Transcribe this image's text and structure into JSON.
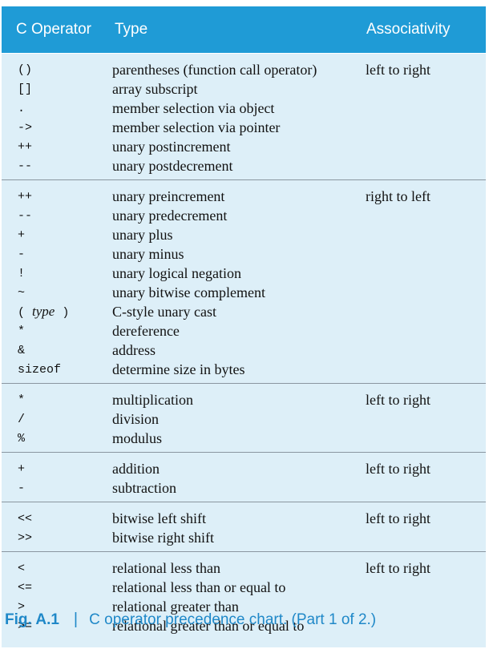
{
  "header": {
    "col_operator": "C Operator",
    "col_type": "Type",
    "col_associativity": "Associativity"
  },
  "groups": [
    {
      "rows": [
        {
          "op": "()",
          "type": "parentheses (function call operator)",
          "assoc": "left to right"
        },
        {
          "op": "[]",
          "type": "array subscript",
          "assoc": ""
        },
        {
          "op": ".",
          "type": "member selection via object",
          "assoc": ""
        },
        {
          "op": "->",
          "type": "member selection via pointer",
          "assoc": ""
        },
        {
          "op": "++",
          "type": "unary postincrement",
          "assoc": ""
        },
        {
          "op": "--",
          "type": "unary postdecrement",
          "assoc": ""
        }
      ]
    },
    {
      "rows": [
        {
          "op": "++",
          "type": "unary preincrement",
          "assoc": "right to left"
        },
        {
          "op": "--",
          "type": "unary predecrement",
          "assoc": ""
        },
        {
          "op": "+",
          "type": "unary plus",
          "assoc": ""
        },
        {
          "op": "-",
          "type": "unary minus",
          "assoc": ""
        },
        {
          "op": "!",
          "type": "unary logical negation",
          "assoc": ""
        },
        {
          "op": "~",
          "type": "unary bitwise complement",
          "assoc": ""
        },
        {
          "op_pre": "( ",
          "op_italic": "type",
          "op_post": " )",
          "type": "C-style unary cast",
          "assoc": ""
        },
        {
          "op": "*",
          "type": "dereference",
          "assoc": ""
        },
        {
          "op": "&",
          "type": "address",
          "assoc": ""
        },
        {
          "op": "sizeof",
          "type": "determine size in bytes",
          "assoc": ""
        }
      ]
    },
    {
      "rows": [
        {
          "op": "*",
          "type": "multiplication",
          "assoc": "left to right"
        },
        {
          "op": "/",
          "type": "division",
          "assoc": ""
        },
        {
          "op": "%",
          "type": "modulus",
          "assoc": ""
        }
      ]
    },
    {
      "rows": [
        {
          "op": "+",
          "type": "addition",
          "assoc": "left to right"
        },
        {
          "op": "-",
          "type": "subtraction",
          "assoc": ""
        }
      ]
    },
    {
      "rows": [
        {
          "op": "<<",
          "type": "bitwise left shift",
          "assoc": "left to right"
        },
        {
          "op": ">>",
          "type": "bitwise right shift",
          "assoc": ""
        }
      ]
    },
    {
      "rows": [
        {
          "op": "<",
          "type": "relational less than",
          "assoc": "left to right"
        },
        {
          "op": "<=",
          "type": "relational less than or equal to",
          "assoc": ""
        },
        {
          "op": ">",
          "type": "relational greater than",
          "assoc": ""
        },
        {
          "op": ">=",
          "type": "relational greater than or equal to",
          "assoc": ""
        }
      ]
    }
  ],
  "caption": {
    "fig_label": "Fig. A.1",
    "separator": "|",
    "text": "C operator precedence chart. (Part 1 of 2.)"
  },
  "colors": {
    "header_bg": "#1f9bd6",
    "body_bg": "#ddeff8",
    "caption": "#1f88c8"
  }
}
